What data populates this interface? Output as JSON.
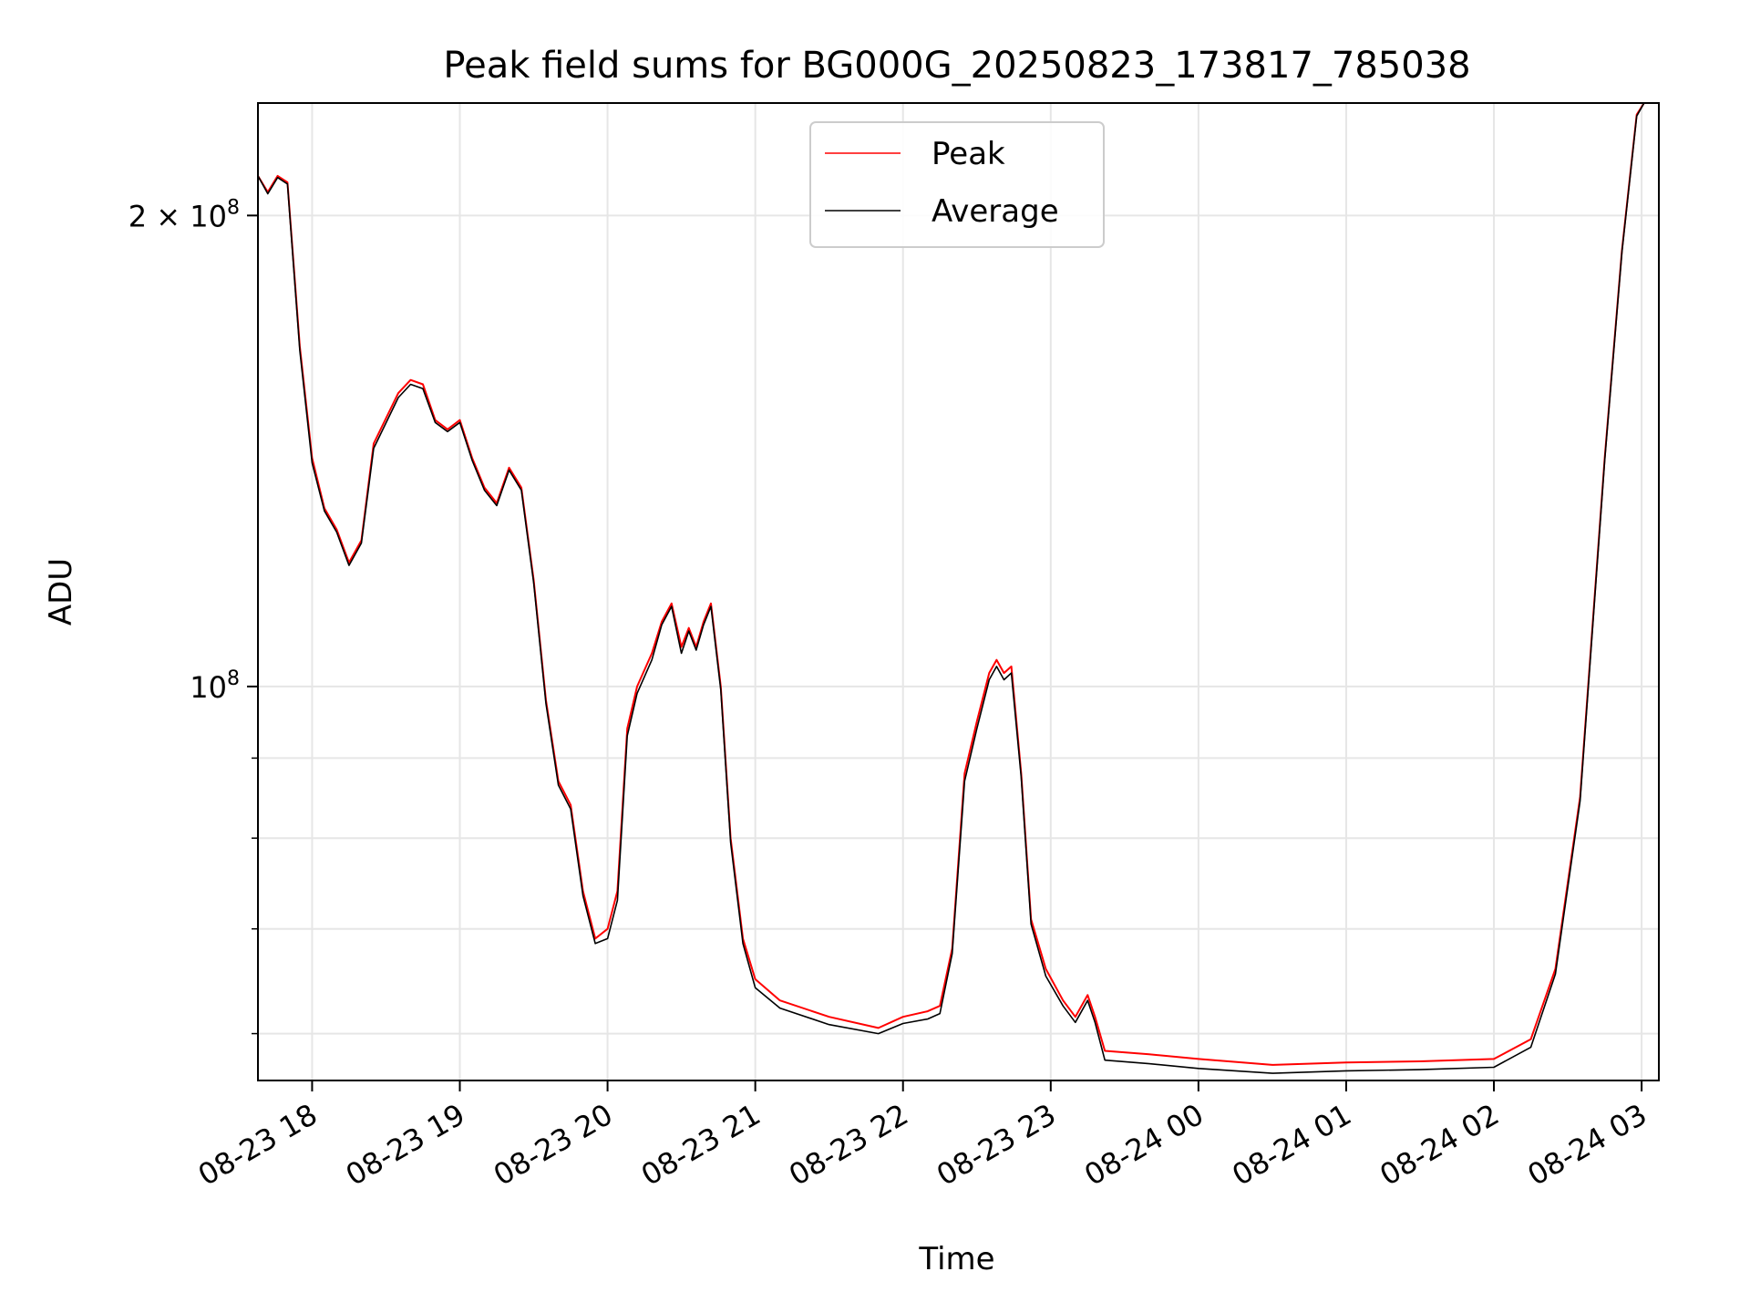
{
  "chart_data": {
    "type": "line",
    "title": "Peak field sums for BG000G_20250823_173817_785038",
    "xlabel": "Time",
    "ylabel": "ADU",
    "yscale": "log",
    "grid": true,
    "legend_position": "top-center",
    "xlim": [
      "2025-08-23 17:38",
      "2025-08-24 03:07"
    ],
    "ylim": [
      56000000,
      236000000
    ],
    "x_ticks": [
      "08-23 18",
      "08-23 19",
      "08-23 20",
      "08-23 21",
      "08-23 22",
      "08-23 23",
      "08-24 00",
      "08-24 01",
      "08-24 02",
      "08-24 03"
    ],
    "y_ticks": [
      {
        "value": 100000000,
        "label": "10",
        "sup": "8"
      },
      {
        "value": 200000000,
        "label": "2 × 10",
        "sup": "8"
      }
    ],
    "y_minor_ticks": [
      60000000,
      70000000,
      80000000,
      90000000
    ],
    "series": [
      {
        "name": "Peak",
        "color": "#ff0000",
        "points": [
          [
            "2025-08-23 17:38",
            212000000
          ],
          [
            "2025-08-23 17:42",
            207000000
          ],
          [
            "2025-08-23 17:46",
            212000000
          ],
          [
            "2025-08-23 17:50",
            210000000
          ],
          [
            "2025-08-23 17:55",
            165000000
          ],
          [
            "2025-08-23 18:00",
            140000000
          ],
          [
            "2025-08-23 18:05",
            130000000
          ],
          [
            "2025-08-23 18:10",
            126000000
          ],
          [
            "2025-08-23 18:15",
            120000000
          ],
          [
            "2025-08-23 18:20",
            124000000
          ],
          [
            "2025-08-23 18:25",
            143000000
          ],
          [
            "2025-08-23 18:35",
            154000000
          ],
          [
            "2025-08-23 18:40",
            157000000
          ],
          [
            "2025-08-23 18:45",
            156000000
          ],
          [
            "2025-08-23 18:50",
            148000000
          ],
          [
            "2025-08-23 18:55",
            146000000
          ],
          [
            "2025-08-23 19:00",
            148000000
          ],
          [
            "2025-08-23 19:05",
            140000000
          ],
          [
            "2025-08-23 19:10",
            134000000
          ],
          [
            "2025-08-23 19:15",
            131000000
          ],
          [
            "2025-08-23 19:20",
            138000000
          ],
          [
            "2025-08-23 19:25",
            134000000
          ],
          [
            "2025-08-23 19:30",
            117000000
          ],
          [
            "2025-08-23 19:35",
            98000000
          ],
          [
            "2025-08-23 19:40",
            87000000
          ],
          [
            "2025-08-23 19:45",
            84000000
          ],
          [
            "2025-08-23 19:50",
            74000000
          ],
          [
            "2025-08-23 19:55",
            69000000
          ],
          [
            "2025-08-23 20:00",
            70000000
          ],
          [
            "2025-08-23 20:04",
            74000000
          ],
          [
            "2025-08-23 20:08",
            94000000
          ],
          [
            "2025-08-23 20:12",
            100000000
          ],
          [
            "2025-08-23 20:18",
            105000000
          ],
          [
            "2025-08-23 20:22",
            110000000
          ],
          [
            "2025-08-23 20:26",
            113000000
          ],
          [
            "2025-08-23 20:30",
            106000000
          ],
          [
            "2025-08-23 20:33",
            109000000
          ],
          [
            "2025-08-23 20:36",
            106000000
          ],
          [
            "2025-08-23 20:39",
            110000000
          ],
          [
            "2025-08-23 20:42",
            113000000
          ],
          [
            "2025-08-23 20:46",
            100000000
          ],
          [
            "2025-08-23 20:50",
            80000000
          ],
          [
            "2025-08-23 20:55",
            69000000
          ],
          [
            "2025-08-23 21:00",
            65000000
          ],
          [
            "2025-08-23 21:10",
            63000000
          ],
          [
            "2025-08-23 21:30",
            61500000
          ],
          [
            "2025-08-23 21:50",
            60500000
          ],
          [
            "2025-08-23 22:00",
            61500000
          ],
          [
            "2025-08-23 22:10",
            62000000
          ],
          [
            "2025-08-23 22:15",
            62500000
          ],
          [
            "2025-08-23 22:20",
            68000000
          ],
          [
            "2025-08-23 22:25",
            88000000
          ],
          [
            "2025-08-23 22:30",
            95000000
          ],
          [
            "2025-08-23 22:35",
            102000000
          ],
          [
            "2025-08-23 22:38",
            104000000
          ],
          [
            "2025-08-23 22:41",
            102000000
          ],
          [
            "2025-08-23 22:44",
            103000000
          ],
          [
            "2025-08-23 22:48",
            88000000
          ],
          [
            "2025-08-23 22:52",
            71000000
          ],
          [
            "2025-08-23 22:58",
            66000000
          ],
          [
            "2025-08-23 23:05",
            63000000
          ],
          [
            "2025-08-23 23:10",
            61500000
          ],
          [
            "2025-08-23 23:15",
            63500000
          ],
          [
            "2025-08-23 23:18",
            61500000
          ],
          [
            "2025-08-23 23:22",
            58500000
          ],
          [
            "2025-08-23 23:40",
            58200000
          ],
          [
            "2025-08-24 00:00",
            57800000
          ],
          [
            "2025-08-24 00:30",
            57300000
          ],
          [
            "2025-08-24 01:00",
            57500000
          ],
          [
            "2025-08-24 01:30",
            57600000
          ],
          [
            "2025-08-24 02:00",
            57800000
          ],
          [
            "2025-08-24 02:15",
            59500000
          ],
          [
            "2025-08-24 02:25",
            66000000
          ],
          [
            "2025-08-24 02:35",
            85000000
          ],
          [
            "2025-08-24 02:45",
            140000000
          ],
          [
            "2025-08-24 02:52",
            190000000
          ],
          [
            "2025-08-24 02:58",
            232000000
          ],
          [
            "2025-08-24 03:01",
            236000000
          ]
        ]
      },
      {
        "name": "Average",
        "color": "#000000",
        "points": [
          [
            "2025-08-23 17:38",
            212000000
          ],
          [
            "2025-08-23 17:42",
            206500000
          ],
          [
            "2025-08-23 17:46",
            211500000
          ],
          [
            "2025-08-23 17:50",
            209500000
          ],
          [
            "2025-08-23 17:55",
            164000000
          ],
          [
            "2025-08-23 18:00",
            139000000
          ],
          [
            "2025-08-23 18:05",
            129500000
          ],
          [
            "2025-08-23 18:10",
            125500000
          ],
          [
            "2025-08-23 18:15",
            119500000
          ],
          [
            "2025-08-23 18:20",
            123500000
          ],
          [
            "2025-08-23 18:25",
            142000000
          ],
          [
            "2025-08-23 18:35",
            153000000
          ],
          [
            "2025-08-23 18:40",
            156000000
          ],
          [
            "2025-08-23 18:45",
            155000000
          ],
          [
            "2025-08-23 18:50",
            147500000
          ],
          [
            "2025-08-23 18:55",
            145500000
          ],
          [
            "2025-08-23 19:00",
            147500000
          ],
          [
            "2025-08-23 19:05",
            139500000
          ],
          [
            "2025-08-23 19:10",
            133500000
          ],
          [
            "2025-08-23 19:15",
            130500000
          ],
          [
            "2025-08-23 19:20",
            137500000
          ],
          [
            "2025-08-23 19:25",
            133500000
          ],
          [
            "2025-08-23 19:30",
            116500000
          ],
          [
            "2025-08-23 19:35",
            97500000
          ],
          [
            "2025-08-23 19:40",
            86500000
          ],
          [
            "2025-08-23 19:45",
            83500000
          ],
          [
            "2025-08-23 19:50",
            73500000
          ],
          [
            "2025-08-23 19:55",
            68500000
          ],
          [
            "2025-08-23 20:00",
            69000000
          ],
          [
            "2025-08-23 20:04",
            73000000
          ],
          [
            "2025-08-23 20:08",
            93000000
          ],
          [
            "2025-08-23 20:12",
            99000000
          ],
          [
            "2025-08-23 20:18",
            104000000
          ],
          [
            "2025-08-23 20:22",
            109500000
          ],
          [
            "2025-08-23 20:26",
            112500000
          ],
          [
            "2025-08-23 20:30",
            105000000
          ],
          [
            "2025-08-23 20:33",
            108500000
          ],
          [
            "2025-08-23 20:36",
            105500000
          ],
          [
            "2025-08-23 20:39",
            109500000
          ],
          [
            "2025-08-23 20:42",
            112500000
          ],
          [
            "2025-08-23 20:46",
            99500000
          ],
          [
            "2025-08-23 20:50",
            79500000
          ],
          [
            "2025-08-23 20:55",
            68500000
          ],
          [
            "2025-08-23 21:00",
            64200000
          ],
          [
            "2025-08-23 21:10",
            62300000
          ],
          [
            "2025-08-23 21:30",
            60800000
          ],
          [
            "2025-08-23 21:50",
            60000000
          ],
          [
            "2025-08-23 22:00",
            60900000
          ],
          [
            "2025-08-23 22:10",
            61300000
          ],
          [
            "2025-08-23 22:15",
            61800000
          ],
          [
            "2025-08-23 22:20",
            67500000
          ],
          [
            "2025-08-23 22:25",
            87000000
          ],
          [
            "2025-08-23 22:30",
            94000000
          ],
          [
            "2025-08-23 22:35",
            101000000
          ],
          [
            "2025-08-23 22:38",
            103000000
          ],
          [
            "2025-08-23 22:41",
            101000000
          ],
          [
            "2025-08-23 22:44",
            102000000
          ],
          [
            "2025-08-23 22:48",
            87500000
          ],
          [
            "2025-08-23 22:52",
            70500000
          ],
          [
            "2025-08-23 22:58",
            65300000
          ],
          [
            "2025-08-23 23:05",
            62500000
          ],
          [
            "2025-08-23 23:10",
            61000000
          ],
          [
            "2025-08-23 23:15",
            63000000
          ],
          [
            "2025-08-23 23:18",
            61000000
          ],
          [
            "2025-08-23 23:22",
            57700000
          ],
          [
            "2025-08-23 23:40",
            57400000
          ],
          [
            "2025-08-24 00:00",
            57000000
          ],
          [
            "2025-08-24 00:30",
            56600000
          ],
          [
            "2025-08-24 01:00",
            56800000
          ],
          [
            "2025-08-24 01:30",
            56900000
          ],
          [
            "2025-08-24 02:00",
            57100000
          ],
          [
            "2025-08-24 02:15",
            58800000
          ],
          [
            "2025-08-24 02:25",
            65500000
          ],
          [
            "2025-08-24 02:35",
            84500000
          ],
          [
            "2025-08-24 02:45",
            139500000
          ],
          [
            "2025-08-24 02:52",
            189500000
          ],
          [
            "2025-08-24 02:58",
            231500000
          ],
          [
            "2025-08-24 03:01",
            236000000
          ]
        ]
      }
    ]
  }
}
